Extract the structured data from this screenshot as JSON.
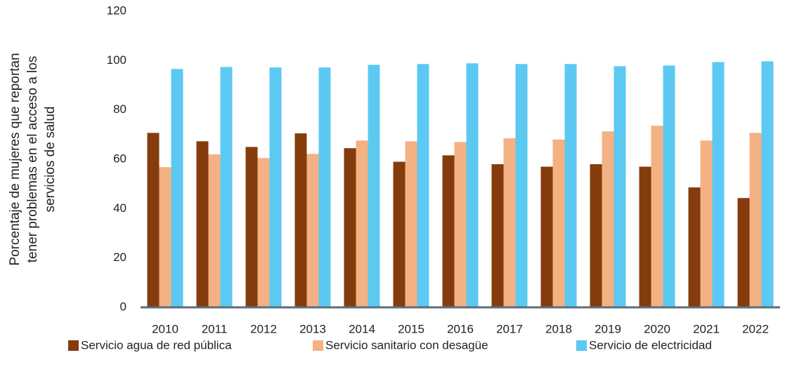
{
  "chart_data": {
    "type": "bar",
    "ylabel": [
      "Porcentaje de mujeres que reportan",
      "tener problemas en el acceso a los",
      "servicios de salud"
    ],
    "categories": [
      "2010",
      "2011",
      "2012",
      "2013",
      "2014",
      "2015",
      "2016",
      "2017",
      "2018",
      "2019",
      "2020",
      "2021",
      "2022"
    ],
    "series": [
      {
        "name": "Servicio agua de red pública",
        "color": "#843c0c",
        "values": [
          70.7,
          67.3,
          65,
          70.5,
          64.5,
          59,
          61.6,
          58,
          57,
          58,
          57,
          48.6,
          44.3
        ]
      },
      {
        "name": "Servicio sanitario con desagüe",
        "color": "#f4b183",
        "values": [
          56.8,
          62,
          60.5,
          62.2,
          67.6,
          67.3,
          67,
          68.5,
          68,
          71.3,
          73.6,
          67.6,
          70.7
        ]
      },
      {
        "name": "Servicio de electricidad",
        "color": "#5bc9f1",
        "values": [
          96.6,
          97.4,
          97.2,
          97.2,
          98.3,
          98.6,
          98.9,
          98.6,
          98.6,
          97.7,
          98,
          99.4,
          99.7
        ]
      }
    ],
    "ylim": [
      0,
      120
    ],
    "yticks": [
      0,
      20,
      40,
      60,
      80,
      100,
      120
    ],
    "grid": false,
    "legend": "bottom"
  }
}
